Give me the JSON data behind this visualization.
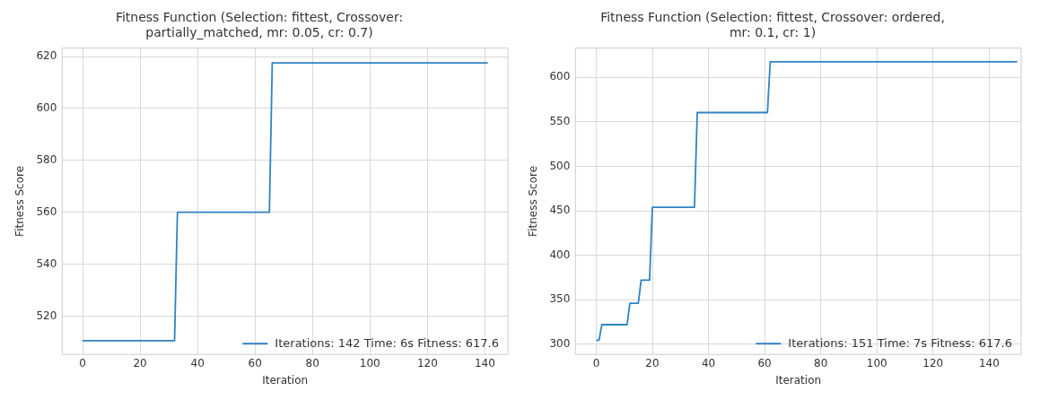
{
  "chart_data": [
    {
      "type": "line",
      "title": "Fitness Function (Selection: fittest, Crossover:\npartially_matched, mr: 0.05, cr: 0.7)",
      "xlabel": "Iteration",
      "ylabel": "Fitness Score",
      "series": [
        {
          "name": "Iterations: 142 Time: 6s Fitness: 617.6",
          "color": "#3182c4",
          "x": [
            0,
            32,
            33,
            65,
            66,
            141
          ],
          "values": [
            510.5,
            510.5,
            560,
            560,
            617.6,
            617.6
          ]
        }
      ],
      "xlim": [
        -7.1,
        148
      ],
      "xticks": [
        0,
        20,
        40,
        60,
        80,
        100,
        120,
        140
      ],
      "ylim": [
        505.2,
        623.3
      ],
      "yticks": [
        520,
        540,
        560,
        580,
        600,
        620
      ],
      "grid": true,
      "legend": "bottom right",
      "marker": "none",
      "line_style": "solid"
    },
    {
      "type": "line",
      "title": "Fitness Function (Selection: fittest, Crossover: ordered,\nmr: 0.1, cr: 1)",
      "xlabel": "Iteration",
      "ylabel": "Fitness Score",
      "series": [
        {
          "name": "Iterations: 151 Time: 7s Fitness: 617.6",
          "color": "#3182c4",
          "x": [
            0,
            1,
            2,
            11,
            12,
            15,
            16,
            19,
            20,
            35,
            36,
            61,
            62,
            150
          ],
          "values": [
            304.5,
            304.5,
            322,
            322,
            346,
            346,
            372,
            372,
            454,
            454,
            560.5,
            560.5,
            617.6,
            617.6
          ]
        }
      ],
      "xlim": [
        -7.4,
        151.4
      ],
      "xticks": [
        0,
        20,
        40,
        60,
        80,
        100,
        120,
        140
      ],
      "ylim": [
        288.5,
        633
      ],
      "yticks": [
        300,
        350,
        400,
        450,
        500,
        550,
        600
      ],
      "grid": true,
      "legend": "bottom right",
      "marker": "none",
      "line_style": "solid"
    }
  ]
}
